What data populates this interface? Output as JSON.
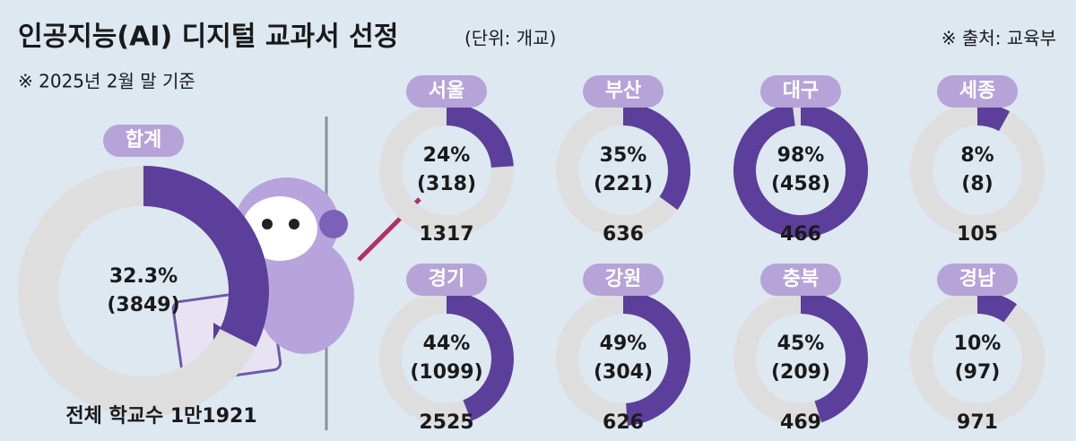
{
  "title": "인공지능(AI) 디지털 교과서 선정",
  "unit": "(단위: 개교)",
  "note": "※ 2025년 2월 말 기준",
  "source": "※ 출처: 교육부",
  "chart_data": [
    {
      "type": "donut",
      "title": "합계",
      "values": [
        32.3
      ],
      "value_labels": [
        "32.3%"
      ],
      "count": 3849,
      "count_label": "(3849)",
      "total": 11921,
      "total_label": "전체 학교수 1만1921",
      "color": "#5b3f9a"
    },
    {
      "type": "donut",
      "title": "서울",
      "values": [
        24
      ],
      "value_labels": [
        "24%"
      ],
      "count": 318,
      "count_label": "(318)",
      "total": 1317,
      "color": "#5b3f9a"
    },
    {
      "type": "donut",
      "title": "부산",
      "values": [
        35
      ],
      "value_labels": [
        "35%"
      ],
      "count": 221,
      "count_label": "(221)",
      "total": 636,
      "color": "#5b3f9a"
    },
    {
      "type": "donut",
      "title": "대구",
      "values": [
        98
      ],
      "value_labels": [
        "98%"
      ],
      "count": 458,
      "count_label": "(458)",
      "total": 466,
      "color": "#5b3f9a"
    },
    {
      "type": "donut",
      "title": "세종",
      "values": [
        8
      ],
      "value_labels": [
        "8%"
      ],
      "count": 8,
      "count_label": "(8)",
      "total": 105,
      "color": "#5b3f9a"
    },
    {
      "type": "donut",
      "title": "경기",
      "values": [
        44
      ],
      "value_labels": [
        "44%"
      ],
      "count": 1099,
      "count_label": "(1099)",
      "total": 2525,
      "color": "#5b3f9a"
    },
    {
      "type": "donut",
      "title": "강원",
      "values": [
        49
      ],
      "value_labels": [
        "49%"
      ],
      "count": 304,
      "count_label": "(304)",
      "total": 626,
      "color": "#5b3f9a"
    },
    {
      "type": "donut",
      "title": "충북",
      "values": [
        45
      ],
      "value_labels": [
        "45%"
      ],
      "count": 209,
      "count_label": "(209)",
      "total": 469,
      "color": "#5b3f9a"
    },
    {
      "type": "donut",
      "title": "경남",
      "values": [
        10
      ],
      "value_labels": [
        "10%"
      ],
      "count": 97,
      "count_label": "(97)",
      "total": 971,
      "color": "#5b3f9a"
    }
  ]
}
